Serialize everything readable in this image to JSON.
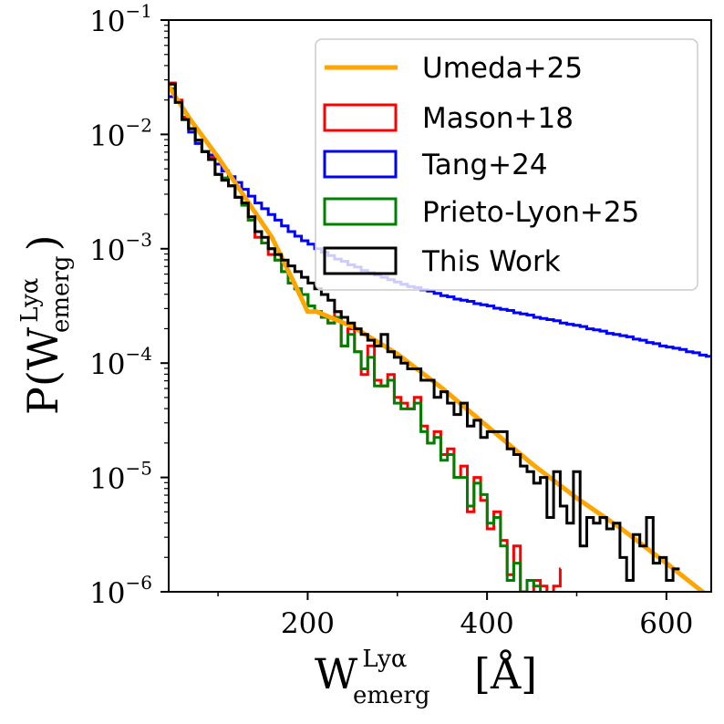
{
  "chart_data": {
    "type": "line",
    "title": "",
    "xlabel": {
      "main": "W",
      "sup": "Lyα",
      "sub": "emerg",
      "unit": "[Å]"
    },
    "ylabel": {
      "prefix": "P(W",
      "sup": "Lyα",
      "sub": "emerg",
      "suffix": ")"
    },
    "xlim": [
      45,
      650
    ],
    "ylim_log10": [
      -6,
      -1
    ],
    "yscale": "log",
    "xticks": [
      200,
      400,
      600
    ],
    "xtick_labels": [
      "200",
      "400",
      "600"
    ],
    "yticks_log10": [
      -6,
      -5,
      -4,
      -3,
      -2,
      -1
    ],
    "ytick_base": "10",
    "ytick_exponents": [
      "−6",
      "−5",
      "−4",
      "−3",
      "−2",
      "−1"
    ],
    "legend_position": "top-right",
    "series": [
      {
        "name": "Umeda+25",
        "style": "line",
        "color": "#ffa500",
        "x": [
          45,
          70,
          100,
          130,
          160,
          185,
          200,
          210,
          250,
          300,
          350,
          400,
          450,
          500,
          550,
          600,
          650
        ],
        "log10y": [
          -1.58,
          -1.88,
          -2.2,
          -2.55,
          -2.9,
          -3.3,
          -3.55,
          -3.55,
          -3.68,
          -3.92,
          -4.22,
          -4.55,
          -4.88,
          -5.18,
          -5.45,
          -5.75,
          -6.06
        ]
      },
      {
        "name": "Mason+18",
        "style": "step",
        "color": "#ff0000",
        "bin_start": 45,
        "bin_width": 7.4,
        "log10y": [
          -1.55,
          -1.7,
          -1.85,
          -1.95,
          -2.05,
          -2.15,
          -2.2,
          -2.35,
          -2.4,
          -2.45,
          -2.55,
          -2.6,
          -2.75,
          -2.9,
          -2.95,
          -3.05,
          -3.1,
          -3.2,
          -3.3,
          -3.35,
          -3.4,
          -3.5,
          -3.55,
          -3.6,
          -3.65,
          -3.55,
          -3.85,
          -3.7,
          -3.9,
          -4.1,
          -3.85,
          -4.15,
          -4.2,
          -4.1,
          -4.3,
          -4.35,
          -4.4,
          -4.3,
          -4.55,
          -4.7,
          -4.6,
          -4.8,
          -4.75,
          -5.0,
          -4.9,
          -5.3,
          -5.0,
          -5.2,
          -5.45,
          -5.3,
          -5.55,
          -5.85,
          -5.6,
          -6.0,
          -6.1,
          -5.9,
          -5.95,
          -6.2,
          -5.95,
          -5.8,
          -6.0,
          -6.1,
          -6.3,
          -6.2,
          -6.0
        ],
        "visible_until": 482
      },
      {
        "name": "Tang+24",
        "style": "step",
        "color": "#0000ff",
        "bin_start": 45,
        "bin_width": 7.4,
        "log10y": [
          -1.67,
          -1.72,
          -1.85,
          -1.98,
          -2.08,
          -2.15,
          -2.18,
          -2.26,
          -2.32,
          -2.37,
          -2.42,
          -2.48,
          -2.54,
          -2.6,
          -2.65,
          -2.7,
          -2.75,
          -2.8,
          -2.85,
          -2.89,
          -2.93,
          -2.96,
          -3.0,
          -3.03,
          -3.06,
          -3.09,
          -3.11,
          -3.14,
          -3.16,
          -3.19,
          -3.21,
          -3.23,
          -3.25,
          -3.27,
          -3.29,
          -3.31,
          -3.33,
          -3.34,
          -3.36,
          -3.37,
          -3.39,
          -3.41,
          -3.42,
          -3.44,
          -3.45,
          -3.46,
          -3.48,
          -3.49,
          -3.5,
          -3.52,
          -3.53,
          -3.54,
          -3.56,
          -3.57,
          -3.58,
          -3.6,
          -3.61,
          -3.62,
          -3.63,
          -3.65,
          -3.66,
          -3.67,
          -3.68,
          -3.7,
          -3.71,
          -3.72,
          -3.74,
          -3.75,
          -3.76,
          -3.77,
          -3.79,
          -3.8,
          -3.82,
          -3.83,
          -3.85,
          -3.86,
          -3.87,
          -3.88,
          -3.9,
          -3.91,
          -3.93,
          -3.94
        ]
      },
      {
        "name": "Prieto-Lyon+25",
        "style": "step",
        "color": "#008000",
        "bin_start": 45,
        "bin_width": 7.4,
        "log10y": [
          -1.6,
          -1.72,
          -1.87,
          -1.95,
          -2.05,
          -2.15,
          -2.22,
          -2.35,
          -2.38,
          -2.45,
          -2.55,
          -2.62,
          -2.75,
          -2.85,
          -2.95,
          -3.0,
          -3.1,
          -3.2,
          -3.3,
          -3.35,
          -3.4,
          -3.5,
          -3.55,
          -3.6,
          -3.65,
          -3.6,
          -3.85,
          -3.75,
          -3.9,
          -4.05,
          -3.95,
          -4.2,
          -4.2,
          -4.15,
          -4.35,
          -4.4,
          -4.4,
          -4.35,
          -4.6,
          -4.7,
          -4.65,
          -4.85,
          -4.8,
          -5.0,
          -5.0,
          -5.25,
          -5.05,
          -5.15,
          -5.4,
          -5.35,
          -5.6,
          -5.9,
          -5.75,
          -6.1,
          -5.9,
          -5.95,
          -6.15,
          -6.05,
          -6.1,
          -5.9,
          -6.2
        ],
        "visible_until": 470
      },
      {
        "name": "This Work",
        "style": "step",
        "color": "#000000",
        "bin_start": 45,
        "bin_width": 7.4,
        "log10y": [
          -1.56,
          -1.72,
          -1.87,
          -1.95,
          -2.05,
          -2.15,
          -2.22,
          -2.35,
          -2.4,
          -2.45,
          -2.55,
          -2.6,
          -2.72,
          -2.85,
          -2.9,
          -3.0,
          -3.05,
          -3.1,
          -3.15,
          -3.2,
          -3.25,
          -3.3,
          -3.35,
          -3.4,
          -3.45,
          -3.55,
          -3.6,
          -3.65,
          -3.7,
          -3.75,
          -3.8,
          -3.85,
          -3.75,
          -3.9,
          -3.95,
          -4.0,
          -4.05,
          -4.05,
          -4.15,
          -4.15,
          -4.3,
          -4.25,
          -4.35,
          -4.45,
          -4.35,
          -4.55,
          -4.5,
          -4.65,
          -4.6,
          -4.6,
          -4.6,
          -4.75,
          -4.8,
          -4.9,
          -4.95,
          -5.05,
          -5.0,
          -5.35,
          -4.95,
          -5.25,
          -5.4,
          -4.95,
          -5.6,
          -5.35,
          -5.4,
          -5.35,
          -5.45,
          -5.4,
          -5.7,
          -5.9,
          -5.5,
          -5.6,
          -5.35,
          -5.75,
          -5.7,
          -5.9,
          -5.8
        ]
      }
    ]
  }
}
